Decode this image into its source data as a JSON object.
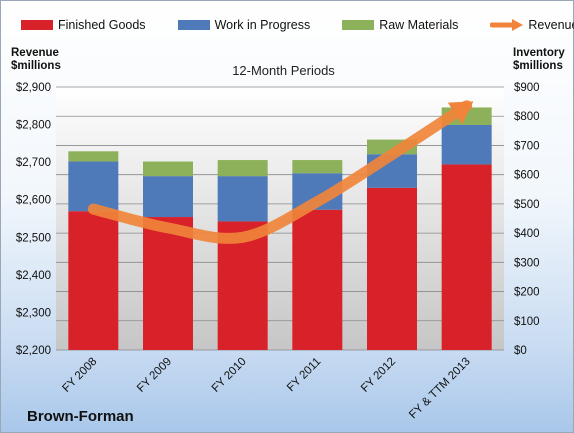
{
  "chart_data": {
    "type": "bar",
    "stacked": true,
    "subtitle": "12-Month Periods",
    "categories": [
      "FY 2008",
      "FY 2009",
      "FY 2010",
      "FY 2011",
      "FY 2012",
      "FY & TTM 2013"
    ],
    "series": [
      {
        "name": "Finished Goods",
        "color": "#d82128",
        "values": [
          475,
          455,
          440,
          480,
          555,
          635
        ]
      },
      {
        "name": "Work in Progress",
        "color": "#4f7ab9",
        "values": [
          170,
          140,
          155,
          125,
          115,
          135
        ]
      },
      {
        "name": "Raw Materials",
        "color": "#8cb15a",
        "values": [
          35,
          50,
          55,
          45,
          50,
          60
        ]
      }
    ],
    "line_series": {
      "name": "Revenue",
      "color": "#f0843a",
      "values": [
        2575,
        2525,
        2500,
        2595,
        2720,
        2850
      ]
    },
    "left_axis": {
      "title_line1": "Revenue",
      "title_line2": "$millions",
      "min": 2200,
      "max": 2900,
      "step": 100,
      "tick_labels": [
        "$2,200",
        "$2,300",
        "$2,400",
        "$2,500",
        "$2,600",
        "$2,700",
        "$2,800",
        "$2,900"
      ]
    },
    "right_axis": {
      "title_line1": "Inventory",
      "title_line2": "$millions",
      "min": 0,
      "max": 900,
      "step": 100,
      "tick_labels": [
        "$0",
        "$100",
        "$200",
        "$300",
        "$400",
        "$500",
        "$600",
        "$700",
        "$800",
        "$900"
      ]
    },
    "legend_placement": "top",
    "grid": true
  },
  "brand": "Brown-Forman"
}
